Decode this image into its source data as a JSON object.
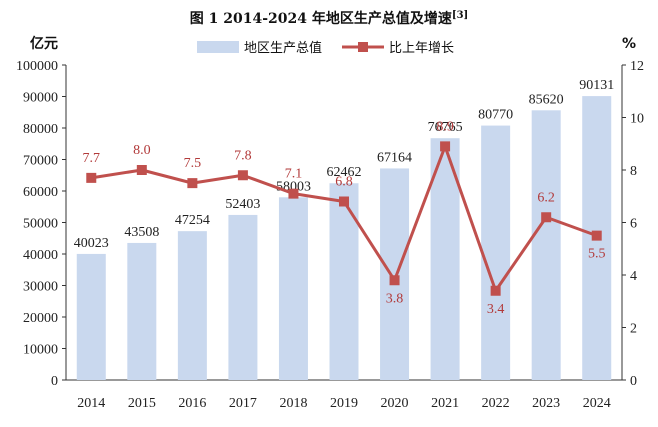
{
  "chart_data": {
    "type": "bar",
    "title": "图 1    2014-2024 年地区生产总值及增速",
    "title_superscript": "[3]",
    "left_unit": "亿元",
    "right_unit": "%",
    "categories": [
      "2014",
      "2015",
      "2016",
      "2017",
      "2018",
      "2019",
      "2020",
      "2021",
      "2022",
      "2023",
      "2024"
    ],
    "series": [
      {
        "name": "地区生产总值",
        "type": "bar",
        "axis": "left",
        "values": [
          40023,
          43508,
          47254,
          52403,
          58003,
          62462,
          67164,
          76765,
          80770,
          85620,
          90131
        ]
      },
      {
        "name": "比上年增长",
        "type": "line",
        "axis": "right",
        "values": [
          7.7,
          8.0,
          7.5,
          7.8,
          7.1,
          6.8,
          3.8,
          8.9,
          3.4,
          6.2,
          5.5
        ]
      }
    ],
    "left_axis": {
      "ylim": [
        0,
        100000
      ],
      "ticks": [
        "0",
        "10000",
        "20000",
        "30000",
        "40000",
        "50000",
        "60000",
        "70000",
        "80000",
        "90000",
        "100000"
      ]
    },
    "right_axis": {
      "ylim": [
        0,
        12
      ],
      "ticks": [
        "0",
        "2",
        "4",
        "6",
        "8",
        "10",
        "12"
      ]
    },
    "legend": "top-center",
    "grid": false,
    "colors": {
      "bar": "#c9d8ee",
      "line": "#c0504d",
      "marker": "#c0504d",
      "line_label": "#b23a3a"
    }
  }
}
